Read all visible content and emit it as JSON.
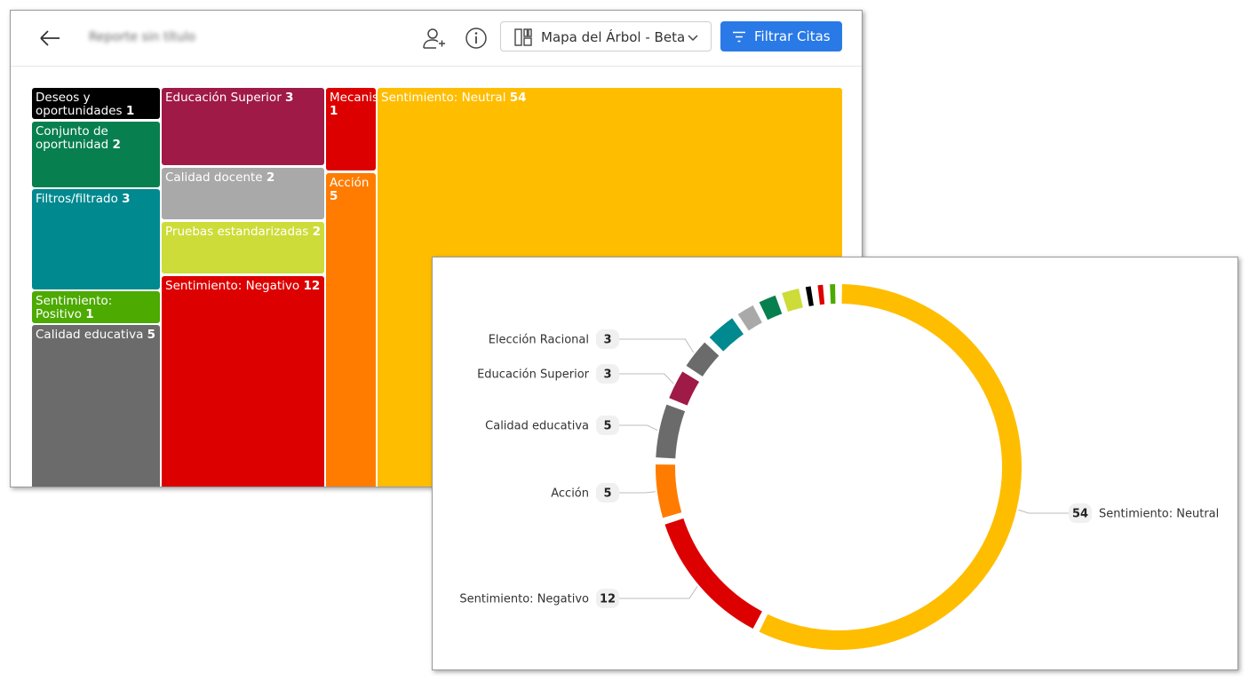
{
  "header": {
    "back_icon": "arrow-left-icon",
    "report_title": "Reporte sin título",
    "share_icon": "add-user-icon",
    "info_icon": "info-icon",
    "view_icon": "treemap-grid-icon",
    "view_label": "Mapa del Árbol - Beta",
    "dropdown_icon": "chevron-down-icon",
    "filter_icon": "filter-icon",
    "filter_label": "Filtrar Citas",
    "accent_color": "#2979e6"
  },
  "chart_data": [
    {
      "type": "treemap",
      "items": [
        {
          "name": "Deseos y oportunidades",
          "value": 1,
          "color": "#000000"
        },
        {
          "name": "Conjunto de oportunidad",
          "value": 2,
          "color": "#087f4f"
        },
        {
          "name": "Filtros/filtrado",
          "value": 3,
          "color": "#00898f"
        },
        {
          "name": "Sentimiento: Positivo",
          "value": 1,
          "color": "#4caa00"
        },
        {
          "name": "Calidad educativa",
          "value": 5,
          "color": "#6b6b6b"
        },
        {
          "name": "Educación Superior",
          "value": 3,
          "color": "#a01a47"
        },
        {
          "name": "Calidad docente",
          "value": 2,
          "color": "#a9a9a9"
        },
        {
          "name": "Pruebas estandarizadas",
          "value": 2,
          "color": "#cddc39"
        },
        {
          "name": "Sentimiento: Negativo",
          "value": 12,
          "color": "#dd0000"
        },
        {
          "name": "Mecanis",
          "value": 1,
          "color": "#dd0000"
        },
        {
          "name": "Acción",
          "value": 5,
          "color": "#ff7c00"
        },
        {
          "name": "Sentimiento: Neutral",
          "value": 54,
          "color": "#ffbd00"
        }
      ]
    },
    {
      "type": "donut",
      "order": "clockwise from top",
      "segments": [
        {
          "name": "Sentimiento: Neutral",
          "value": 54,
          "color": "#ffbd00",
          "labeled": true
        },
        {
          "name": "Sentimiento: Negativo",
          "value": 12,
          "color": "#dd0000",
          "labeled": true
        },
        {
          "name": "Acción",
          "value": 5,
          "color": "#ff7c00",
          "labeled": true
        },
        {
          "name": "Calidad educativa",
          "value": 5,
          "color": "#6b6b6b",
          "labeled": true
        },
        {
          "name": "Educación Superior",
          "value": 3,
          "color": "#a01a47",
          "labeled": true
        },
        {
          "name": "Elección Racional",
          "value": 3,
          "color": "#6b6b6b",
          "labeled": true
        },
        {
          "name": "",
          "value": 3,
          "color": "#00898f",
          "labeled": false
        },
        {
          "name": "",
          "value": 2,
          "color": "#a9a9a9",
          "labeled": false
        },
        {
          "name": "",
          "value": 2,
          "color": "#087f4f",
          "labeled": false
        },
        {
          "name": "",
          "value": 2,
          "color": "#cddc39",
          "labeled": false
        },
        {
          "name": "",
          "value": 1,
          "color": "#000000",
          "labeled": false
        },
        {
          "name": "",
          "value": 1,
          "color": "#dd0000",
          "labeled": false
        },
        {
          "name": "",
          "value": 1,
          "color": "#4caa00",
          "labeled": false
        }
      ]
    }
  ]
}
